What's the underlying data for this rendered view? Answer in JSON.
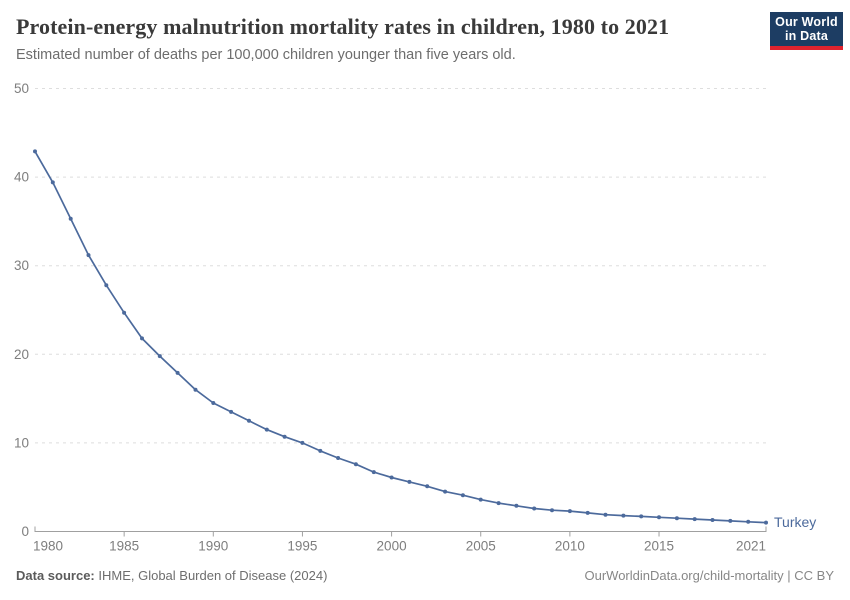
{
  "header": {
    "title": "Protein-energy malnutrition mortality rates in children, 1980 to 2021",
    "subtitle": "Estimated number of deaths per 100,000 children younger than five years old."
  },
  "logo": {
    "line1": "Our World",
    "line2": "in Data",
    "bg_color": "#1d3d63",
    "accent_color": "#e0232e"
  },
  "chart_data": {
    "type": "line",
    "title": "Protein-energy malnutrition mortality rates in children, 1980 to 2021",
    "xlabel": "",
    "ylabel": "Estimated number of deaths per 100,000 children younger than five years old",
    "xlim": [
      1980,
      2021
    ],
    "ylim": [
      0,
      50
    ],
    "x_ticks": [
      1980,
      1985,
      1990,
      1995,
      2000,
      2005,
      2010,
      2015,
      2021
    ],
    "y_ticks": [
      0,
      10,
      20,
      30,
      40,
      50
    ],
    "grid": "horizontal-dashed",
    "legend_position": "end-of-line",
    "series": [
      {
        "name": "Turkey",
        "color": "#4c6a9c",
        "x": [
          1980,
          1981,
          1982,
          1983,
          1984,
          1985,
          1986,
          1987,
          1988,
          1989,
          1990,
          1991,
          1992,
          1993,
          1994,
          1995,
          1996,
          1997,
          1998,
          1999,
          2000,
          2001,
          2002,
          2003,
          2004,
          2005,
          2006,
          2007,
          2008,
          2009,
          2010,
          2011,
          2012,
          2013,
          2014,
          2015,
          2016,
          2017,
          2018,
          2019,
          2020,
          2021
        ],
        "values": [
          42.9,
          39.4,
          35.3,
          31.2,
          27.8,
          24.7,
          21.8,
          19.8,
          17.9,
          16.0,
          14.5,
          13.5,
          12.5,
          11.5,
          10.7,
          10.0,
          9.1,
          8.3,
          7.6,
          6.7,
          6.1,
          5.6,
          5.1,
          4.5,
          4.1,
          3.6,
          3.2,
          2.9,
          2.6,
          2.4,
          2.3,
          2.1,
          1.9,
          1.8,
          1.7,
          1.6,
          1.5,
          1.4,
          1.3,
          1.2,
          1.1,
          1.0
        ]
      }
    ],
    "axis_color": "#a0a0a0",
    "gridline_color": "#dedede",
    "tick_label_color": "#7e7e7e"
  },
  "footer": {
    "source_label": "Data source:",
    "source_text": " IHME, Global Burden of Disease (2024)",
    "credit": "OurWorldinData.org/child-mortality | CC BY"
  }
}
